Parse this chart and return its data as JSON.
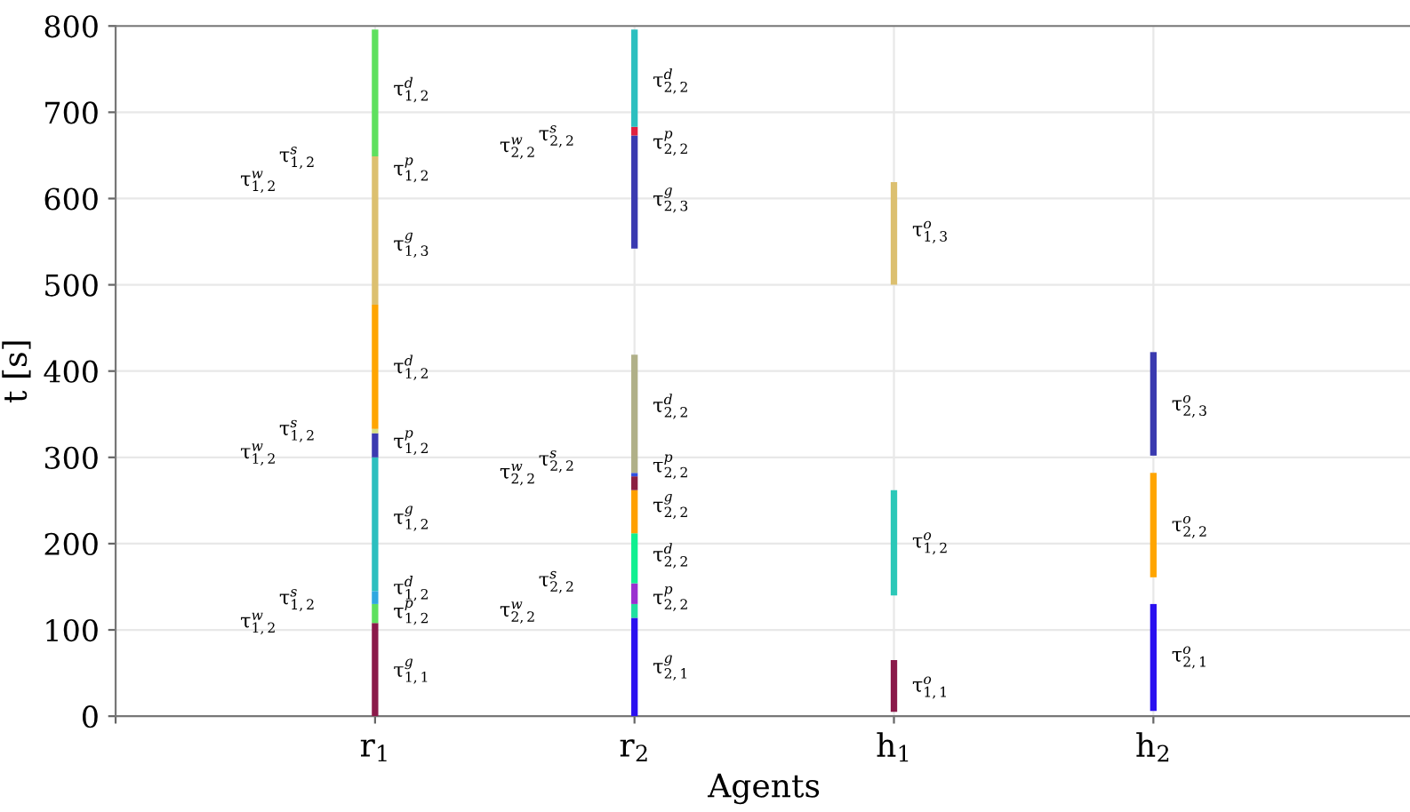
{
  "chart_data": {
    "type": "bar",
    "xlabel": "Agents",
    "ylabel": "t [s]",
    "categories": [
      null,
      "r$_{1}$",
      "r$_{2}$",
      "h$_{1}$",
      "h$_{2}$",
      null
    ],
    "ylim": [
      0,
      800
    ],
    "yticks": [
      0,
      100,
      200,
      300,
      400,
      500,
      600,
      700,
      800
    ],
    "grid": true,
    "series": [
      {
        "base": [
          null,
          0,
          0,
          5,
          6,
          null
        ],
        "values": [
          null,
          108,
          114,
          60,
          124,
          null
        ],
        "colors": [
          null,
          "#8b1a4a",
          "#2a10f0",
          "#8b1a4a",
          "#2a10f0",
          null
        ]
      },
      {
        "base": [
          null,
          108,
          114,
          140,
          161,
          null
        ],
        "values": [
          null,
          22,
          16,
          122,
          121,
          null
        ],
        "colors": [
          null,
          "#5ee05e",
          "#20e0a0",
          "#2cc8b8",
          "#ffa500",
          null
        ]
      },
      {
        "base": [
          null,
          130,
          130,
          500,
          302,
          null
        ],
        "values": [
          null,
          15,
          24,
          119,
          120,
          null
        ],
        "colors": [
          null,
          "#30a8e0",
          "#9a30d0",
          "#dcc070",
          "#3a3ab0",
          null
        ]
      },
      {
        "base": [
          null,
          145,
          154,
          null,
          null,
          null
        ],
        "values": [
          null,
          155,
          58,
          null,
          null,
          null
        ],
        "colors": [
          null,
          "#2cbfbf",
          "#10f090",
          null,
          null,
          null
        ]
      },
      {
        "base": [
          null,
          300,
          212,
          null,
          null,
          null
        ],
        "values": [
          null,
          28,
          50,
          null,
          null,
          null
        ],
        "colors": [
          null,
          "#3a3ab0",
          "#ffa000",
          null,
          null,
          null
        ]
      },
      {
        "base": [
          null,
          328,
          262,
          null,
          null,
          null
        ],
        "values": [
          null,
          5,
          16,
          null,
          null,
          null
        ],
        "colors": [
          null,
          "#d8e080",
          "#8b2040",
          null,
          null,
          null
        ]
      },
      {
        "base": [
          null,
          333,
          278,
          null,
          null,
          null
        ],
        "values": [
          null,
          144,
          4,
          null,
          null,
          null
        ],
        "colors": [
          null,
          "#ffa500",
          "#3050e0",
          null,
          null,
          null
        ]
      },
      {
        "base": [
          null,
          477,
          282,
          null,
          null,
          null
        ],
        "values": [
          null,
          172,
          137,
          null,
          null,
          null
        ],
        "colors": [
          null,
          "#dcc070",
          "#b0b088",
          null,
          null,
          null
        ]
      },
      {
        "base": [
          null,
          649,
          542,
          null,
          null,
          null
        ],
        "values": [
          null,
          147,
          131,
          null,
          null,
          null
        ],
        "colors": [
          null,
          "#5ee05e",
          "#3a3ab0",
          null,
          null,
          null
        ]
      },
      {
        "base": [
          null,
          null,
          673,
          null,
          null,
          null
        ],
        "values": [
          null,
          null,
          10,
          null,
          null,
          null
        ],
        "colors": [
          null,
          null,
          "#e02040",
          null,
          null,
          null
        ]
      },
      {
        "base": [
          null,
          null,
          683,
          null,
          null,
          null
        ],
        "values": [
          null,
          null,
          113,
          null,
          null,
          null
        ],
        "colors": [
          null,
          null,
          "#2cbfbf",
          null,
          null,
          null
        ]
      }
    ],
    "annotations": [
      {
        "text": "τ$^{d}$$_{1,2}$",
        "x": "r$_{1}$",
        "y": 726
      },
      {
        "text": "τ$^{p}$$_{1,2}$",
        "x": "r$_{1}$",
        "y": 633
      },
      {
        "text": "τ$^{g}$$_{1,3}$",
        "x": "r$_{1}$",
        "y": 546
      },
      {
        "text": "τ$^{d}$$_{1,2}$",
        "x": "r$_{1}$",
        "y": 404
      },
      {
        "text": "τ$^{p}$$_{1,2}$",
        "x": "r$_{1}$",
        "y": 317
      },
      {
        "text": "τ$^{g}$$_{1,2}$",
        "x": "r$_{1}$",
        "y": 229
      },
      {
        "text": "τ$^{d}$$_{1,2}$",
        "x": "r$_{1}$",
        "y": 148
      },
      {
        "text": "τ$^{p}$$_{1,2}$",
        "x": "r$_{1}$",
        "y": 120
      },
      {
        "text": "τ$^{g}$$_{1,1}$",
        "x": "r$_{1}$",
        "y": 52
      },
      "τ$^{w}$$_{1,2}$",
      "τ$^{s}$$_{1,2}$",
      "τ$^{w}$$_{1,2}$",
      "τ$^{s}$$_{1,2}$",
      "τ$^{w}$$_{1,2}$",
      "τ$^{s}$$_{1,2}$",
      {
        "text": "τ$^{d}$$_{2,2}$",
        "x": "r$_{2}$",
        "y": 736
      },
      {
        "text": "τ$^{p}$$_{2,2}$",
        "x": "r$_{2}$",
        "y": 664
      },
      {
        "text": "τ$^{g}$$_{2,3}$",
        "x": "r$_{2}$",
        "y": 598
      },
      {
        "text": "τ$^{d}$$_{2,2}$",
        "x": "r$_{2}$",
        "y": 359
      },
      {
        "text": "τ$^{p}$$_{2,2}$",
        "x": "r$_{2}$",
        "y": 289
      },
      {
        "text": "τ$^{g}$$_{2,2}$",
        "x": "r$_{2}$",
        "y": 243
      },
      {
        "text": "τ$^{d}$$_{2,2}$",
        "x": "r$_{2}$",
        "y": 186
      },
      {
        "text": "τ$^{p}$$_{2,2}$",
        "x": "r$_{2}$",
        "y": 136
      },
      {
        "text": "τ$^{g}$$_{2,1}$",
        "x": "r$_{2}$",
        "y": 56
      },
      "τ$^{w}$$_{2,2}$",
      "τ$^{s}$$_{2,2}$",
      "τ$^{w}$$_{2,2}$",
      "τ$^{s}$$_{2,2}$",
      "τ$^{w}$$_{2,2}$",
      "τ$^{s}$$_{2,2}$",
      {
        "text": "τ$^{o}$$_{1,3}$",
        "x": "h$_{1}$",
        "y": 561
      },
      {
        "text": "τ$^{o}$$_{1,2}$",
        "x": "h$_{1}$",
        "y": 200
      },
      {
        "text": "τ$^{o}$$_{1,1}$",
        "x": "h$_{1}$",
        "y": 33
      },
      {
        "text": "τ$^{o}$$_{2,3}$",
        "x": "h$_{2}$",
        "y": 359
      },
      {
        "text": "τ$^{o}$$_{2,2}$",
        "x": "h$_{2}$",
        "y": 219
      },
      {
        "text": "τ$^{o}$$_{2,1}$",
        "x": "h$_{2}$",
        "y": 68
      }
    ]
  }
}
